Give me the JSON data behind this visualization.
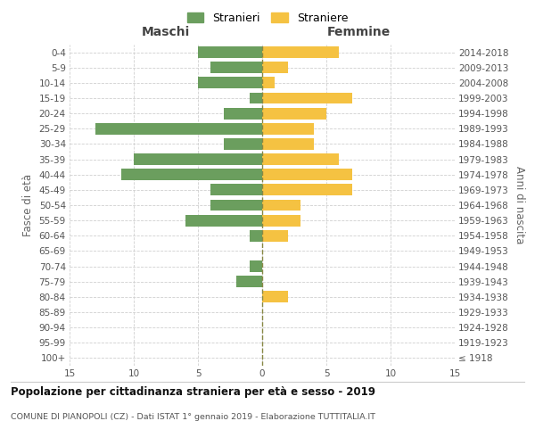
{
  "age_groups": [
    "100+",
    "95-99",
    "90-94",
    "85-89",
    "80-84",
    "75-79",
    "70-74",
    "65-69",
    "60-64",
    "55-59",
    "50-54",
    "45-49",
    "40-44",
    "35-39",
    "30-34",
    "25-29",
    "20-24",
    "15-19",
    "10-14",
    "5-9",
    "0-4"
  ],
  "birth_years": [
    "≤ 1918",
    "1919-1923",
    "1924-1928",
    "1929-1933",
    "1934-1938",
    "1939-1943",
    "1944-1948",
    "1949-1953",
    "1954-1958",
    "1959-1963",
    "1964-1968",
    "1969-1973",
    "1974-1978",
    "1979-1983",
    "1984-1988",
    "1989-1993",
    "1994-1998",
    "1999-2003",
    "2004-2008",
    "2009-2013",
    "2014-2018"
  ],
  "maschi": [
    0,
    0,
    0,
    0,
    0,
    2,
    1,
    0,
    1,
    6,
    4,
    4,
    11,
    10,
    3,
    13,
    3,
    1,
    5,
    4,
    5
  ],
  "femmine": [
    0,
    0,
    0,
    0,
    2,
    0,
    0,
    0,
    2,
    3,
    3,
    7,
    7,
    6,
    4,
    4,
    5,
    7,
    1,
    2,
    6
  ],
  "color_maschi": "#6b9e5e",
  "color_femmine": "#f5c242",
  "title": "Popolazione per cittadinanza straniera per età e sesso - 2019",
  "subtitle": "COMUNE DI PIANOPOLI (CZ) - Dati ISTAT 1° gennaio 2019 - Elaborazione TUTTITALIA.IT",
  "xlabel_left": "Maschi",
  "xlabel_right": "Femmine",
  "ylabel_left": "Fasce di età",
  "ylabel_right": "Anni di nascita",
  "xlim": 15,
  "legend_stranieri": "Stranieri",
  "legend_straniere": "Straniere",
  "background_color": "#ffffff",
  "grid_color": "#d0d0d0"
}
